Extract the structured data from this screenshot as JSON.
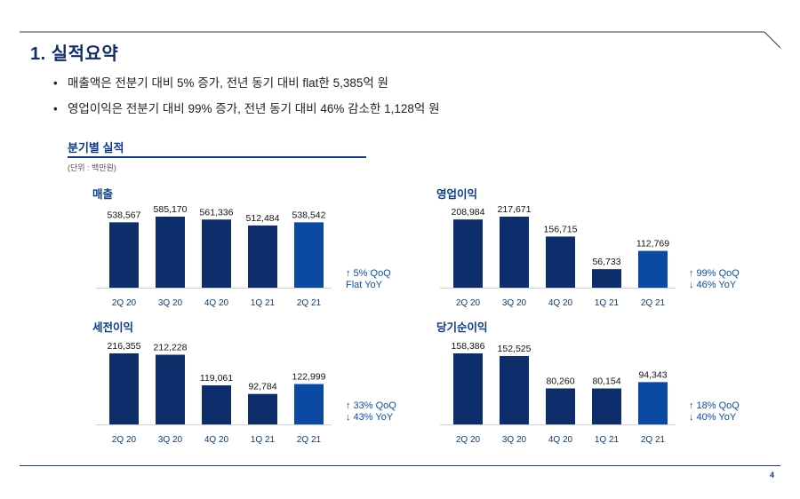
{
  "header": {
    "title": "1. 실적요약"
  },
  "bullets": [
    "매출액은 전분기 대비 5% 증가, 전년 동기 대비 flat한 5,385억 원",
    "영업이익은 전분기 대비 99% 증가, 전년 동기 대비 46% 감소한 1,128억 원"
  ],
  "section": {
    "title": "분기별 실적",
    "unit": "(단위 : 백만원)"
  },
  "colors": {
    "primary": "#0d2d6b",
    "highlight": "#0b4aa2",
    "accent": "#0d3b8a"
  },
  "chart_data": [
    {
      "type": "bar",
      "title": "매출",
      "categories": [
        "2Q 20",
        "3Q 20",
        "4Q 20",
        "1Q 21",
        "2Q 21"
      ],
      "values": [
        538567,
        585170,
        561336,
        512484,
        538542
      ],
      "value_labels": [
        "538,567",
        "585,170",
        "561,336",
        "512,484",
        "538,542"
      ],
      "changes": [
        "↑ 5% QoQ",
        "Flat YoY"
      ]
    },
    {
      "type": "bar",
      "title": "영업이익",
      "categories": [
        "2Q 20",
        "3Q 20",
        "4Q 20",
        "1Q 21",
        "2Q 21"
      ],
      "values": [
        208984,
        217671,
        156715,
        56733,
        112769
      ],
      "value_labels": [
        "208,984",
        "217,671",
        "156,715",
        "56,733",
        "112,769"
      ],
      "changes": [
        "↑ 99% QoQ",
        "↓ 46% YoY"
      ]
    },
    {
      "type": "bar",
      "title": "세전이익",
      "categories": [
        "2Q 20",
        "3Q 20",
        "4Q 20",
        "1Q 21",
        "2Q 21"
      ],
      "values": [
        216355,
        212228,
        119061,
        92784,
        122999
      ],
      "value_labels": [
        "216,355",
        "212,228",
        "119,061",
        "92,784",
        "122,999"
      ],
      "changes": [
        "↑ 33% QoQ",
        "↓ 43% YoY"
      ]
    },
    {
      "type": "bar",
      "title": "당기순이익",
      "categories": [
        "2Q 20",
        "3Q 20",
        "4Q 20",
        "1Q 21",
        "2Q 21"
      ],
      "values": [
        158386,
        152525,
        80260,
        80154,
        94343
      ],
      "value_labels": [
        "158,386",
        "152,525",
        "80,260",
        "80,154",
        "94,343"
      ],
      "changes": [
        "↑ 18% QoQ",
        "↓ 40% YoY"
      ]
    }
  ],
  "footer": {
    "page": "4"
  }
}
